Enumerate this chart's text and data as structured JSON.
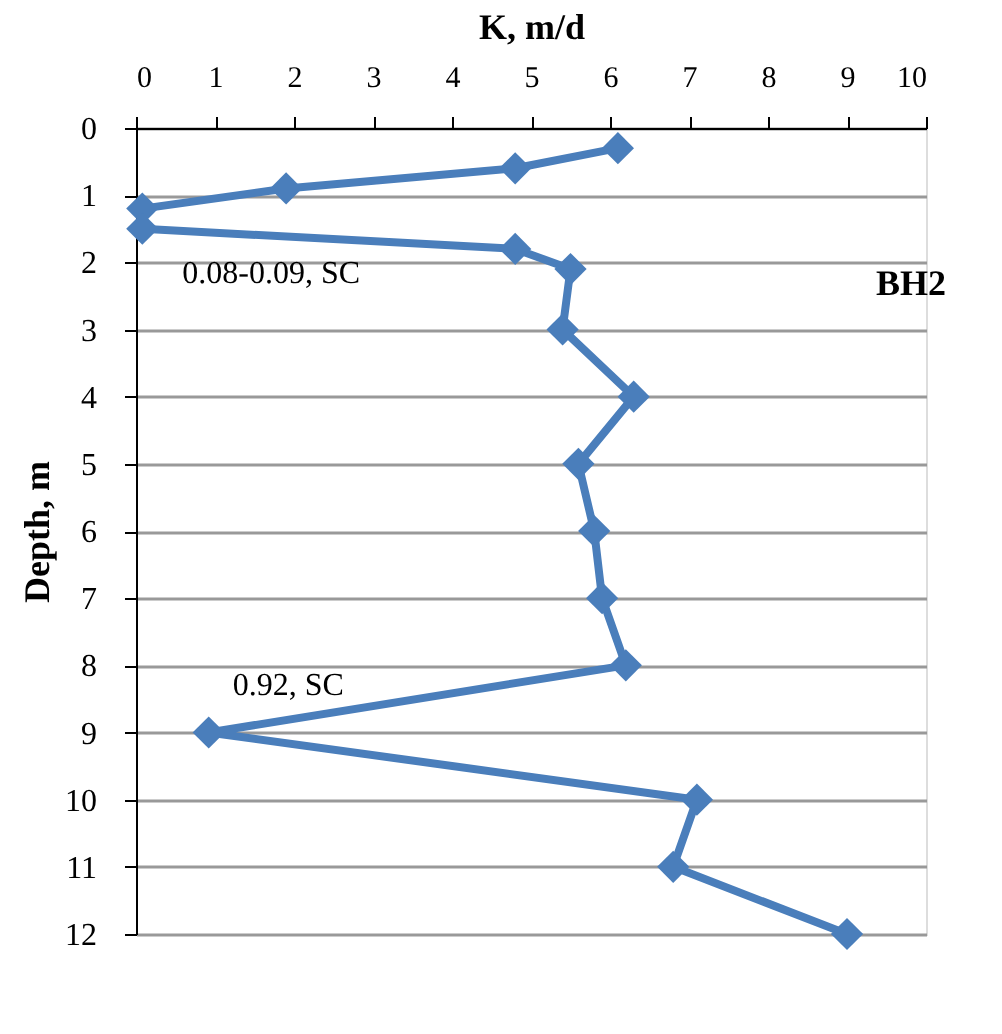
{
  "chart_data": {
    "type": "line",
    "xlabel": "K, m/d",
    "ylabel": "Depth, m",
    "x": [
      6.1,
      4.8,
      1.9,
      0.08,
      0.08,
      4.8,
      5.5,
      5.4,
      6.3,
      5.6,
      5.8,
      5.9,
      6.2,
      0.92,
      7.1,
      6.8,
      9.0
    ],
    "series": [
      {
        "color": "#4a7ebb",
        "values": [
          0.3,
          0.6,
          0.9,
          1.2,
          1.5,
          1.8,
          2.1,
          3,
          4,
          5,
          6,
          7,
          8,
          9,
          10,
          11,
          12
        ]
      }
    ],
    "xlim": [
      0,
      10
    ],
    "xticks": [
      0,
      1,
      2,
      3,
      4,
      5,
      6,
      7,
      8,
      9,
      10
    ],
    "ylim": [
      12,
      0
    ],
    "yticks": [
      0,
      1,
      2,
      3,
      4,
      5,
      6,
      7,
      8,
      9,
      10,
      11,
      12
    ],
    "grid": "y",
    "marker": "diamond",
    "line_style": "solid",
    "annotations": [
      {
        "text": "0.08-0.09, SC",
        "x": 0.08,
        "y": 1.5
      },
      {
        "text": "0.92, SC",
        "x": 0.92,
        "y": 9
      },
      "BH2"
    ]
  }
}
